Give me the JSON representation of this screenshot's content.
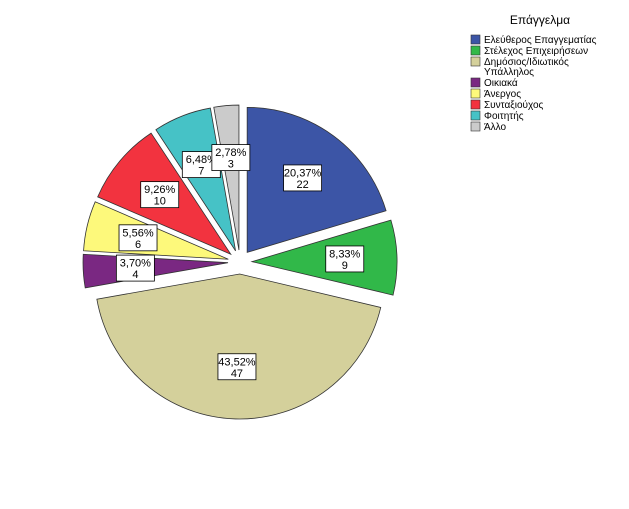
{
  "chart_data": {
    "type": "pie",
    "legend_title": "Επάγγελμα",
    "legend_position": "top-right",
    "slices": [
      {
        "label": [
          "Ελεύθερος Επαγγεματίας"
        ],
        "percent_label": "20,37%",
        "count_label": "22",
        "value": 22,
        "color": "#3c55a6",
        "exploded": true
      },
      {
        "label": [
          "Στέλεχος Επιχειρήσεων"
        ],
        "percent_label": "8,33%",
        "count_label": "9",
        "value": 9,
        "color": "#31b849",
        "exploded": true
      },
      {
        "label": [
          "Δημόσιος/Ιδιωτικός",
          "Υπάλληλος"
        ],
        "percent_label": "43,52%",
        "count_label": "47",
        "value": 47,
        "color": "#d4d09b",
        "exploded": true
      },
      {
        "label": [
          "Οικιακά"
        ],
        "percent_label": "3,70%",
        "count_label": "4",
        "value": 4,
        "color": "#7a2882",
        "exploded": true
      },
      {
        "label": [
          "Άνεργος"
        ],
        "percent_label": "5,56%",
        "count_label": "6",
        "value": 6,
        "color": "#fdf97b",
        "exploded": true
      },
      {
        "label": [
          "Συνταξιούχος"
        ],
        "percent_label": "9,26%",
        "count_label": "10",
        "value": 10,
        "color": "#f2333f",
        "exploded": true
      },
      {
        "label": [
          "Φοιτητής"
        ],
        "percent_label": "6,48%",
        "count_label": "7",
        "value": 7,
        "color": "#46c2c6",
        "exploded": true
      },
      {
        "label": [
          "Άλλο"
        ],
        "percent_label": "2,78%",
        "count_label": "3",
        "value": 3,
        "color": "#cbcbcb",
        "exploded": true
      }
    ]
  }
}
